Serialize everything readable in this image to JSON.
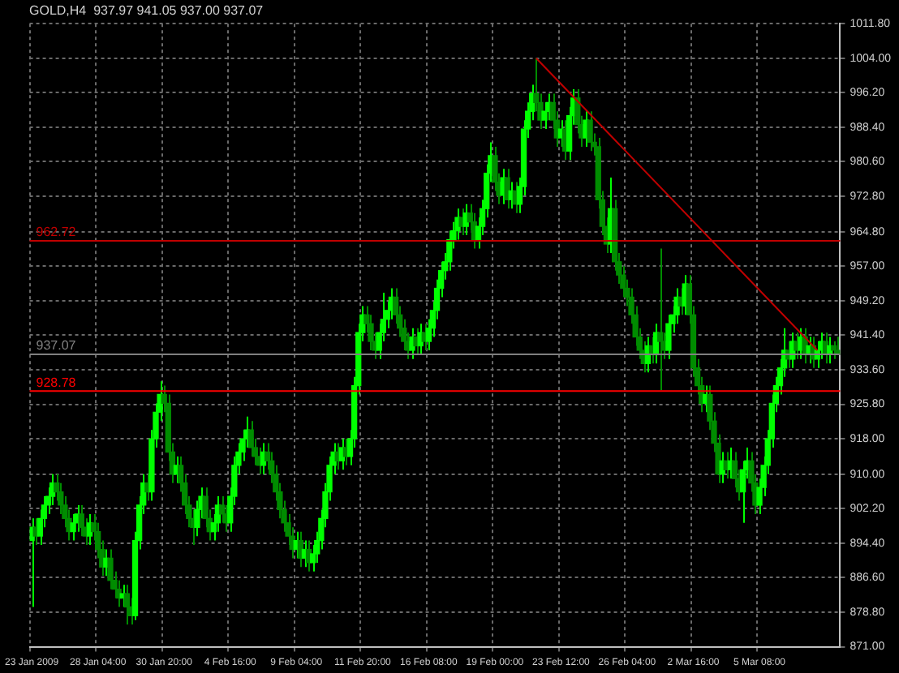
{
  "chart_data": {
    "type": "candlestick",
    "title": "GOLD,H4  937.97 941.05 937.00 937.07",
    "colors": [
      "#00ff00",
      "#008c00",
      "#00ff00",
      "#00ff00",
      "#00ff00",
      "#00ff00",
      "#008c00",
      "#008c00",
      "#008c00",
      "#008c00",
      "#00ff00",
      "#00ff00",
      "#008c00",
      "#008c00",
      "#00ff00",
      "#008c00",
      "#008c00",
      "#008c00",
      "#00ff00",
      "#008c00",
      "#008c00",
      "#008c00",
      "#00ff00",
      "#008c00",
      "#008c00",
      "#00ff00",
      "#00ff00",
      "#00ff00",
      "#008c00",
      "#00ff00",
      "#00ff00",
      "#00ff00",
      "#008c00",
      "#008c00",
      "#008c00",
      "#00ff00",
      "#008c00",
      "#008c00",
      "#008c00",
      "#008c00",
      "#00ff00",
      "#00ff00",
      "#008c00",
      "#008c00",
      "#00ff00",
      "#00ff00",
      "#008c00",
      "#008c00",
      "#00ff00",
      "#00ff00",
      "#00ff00",
      "#00ff00",
      "#00ff00",
      "#008c00",
      "#008c00",
      "#008c00",
      "#00ff00",
      "#008c00",
      "#008c00",
      "#008c00",
      "#008c00",
      "#008c00",
      "#008c00",
      "#008c00",
      "#00ff00",
      "#008c00",
      "#00ff00",
      "#008c00",
      "#00ff00",
      "#00ff00",
      "#00ff00",
      "#00ff00",
      "#00ff00",
      "#00ff00",
      "#008c00",
      "#00ff00",
      "#008c00",
      "#00ff00",
      "#00ff00",
      "#00ff00",
      "#00ff00",
      "#008c00",
      "#008c00",
      "#008c00",
      "#00ff00",
      "#00ff00",
      "#00ff00",
      "#00ff00",
      "#008c00",
      "#008c00",
      "#008c00",
      "#008c00",
      "#00ff00",
      "#008c00",
      "#00ff00",
      "#008c00",
      "#00ff00",
      "#00ff00",
      "#00ff00",
      "#00ff00",
      "#00ff00",
      "#00ff00",
      "#00ff00",
      "#00ff00",
      "#008c00",
      "#00ff00",
      "#008c00",
      "#008c00",
      "#00ff00",
      "#00ff00",
      "#00ff00",
      "#00ff00",
      "#008c00",
      "#008c00",
      "#00ff00",
      "#008c00",
      "#00ff00",
      "#008c00",
      "#00ff00",
      "#00ff00",
      "#00ff00",
      "#00ff00",
      "#008c00",
      "#008c00",
      "#00ff00",
      "#00ff00",
      "#008c00",
      "#008c00",
      "#00ff00",
      "#008c00",
      "#00ff00",
      "#00ff00",
      "#008c00",
      "#008c00",
      "#00ff00",
      "#008c00",
      "#008c00",
      "#008c00",
      "#008c00",
      "#008c00",
      "#00ff00",
      "#008c00",
      "#008c00",
      "#008c00",
      "#008c00",
      "#008c00",
      "#008c00",
      "#008c00",
      "#008c00",
      "#00ff00",
      "#008c00",
      "#00ff00",
      "#008c00",
      "#008c00",
      "#00ff00",
      "#00ff00",
      "#00ff00",
      "#008c00",
      "#00ff00",
      "#008c00",
      "#008c00",
      "#008c00",
      "#008c00",
      "#00ff00",
      "#008c00",
      "#008c00",
      "#008c00",
      "#00ff00",
      "#008c00",
      "#00ff00",
      "#008c00",
      "#008c00",
      "#00ff00",
      "#00ff00",
      "#008c00",
      "#008c00",
      "#00ff00",
      "#00ff00",
      "#00ff00",
      "#00ff00",
      "#00ff00",
      "#00ff00",
      "#00ff00",
      "#008c00",
      "#00ff00",
      "#008c00",
      "#00ff00",
      "#008c00",
      "#00ff00",
      "#008c00",
      "#00ff00",
      "#00ff00",
      "#008c00",
      "#00ff00",
      "#008c00",
      "#008c00"
    ],
    "categories": [
      "23 Jan 2009",
      null,
      null,
      null,
      null,
      null,
      null,
      null,
      null,
      null,
      null,
      null,
      null,
      null,
      null,
      null,
      "28 Jan 04:00",
      null,
      null,
      null,
      null,
      null,
      null,
      null,
      null,
      null,
      null,
      null,
      null,
      null,
      null,
      null,
      "30 Jan 20:00",
      null,
      null,
      null,
      null,
      null,
      null,
      null,
      null,
      null,
      null,
      null,
      null,
      null,
      null,
      null,
      "4 Feb 16:00",
      null,
      null,
      null,
      null,
      null,
      null,
      null,
      null,
      null,
      null,
      null,
      null,
      null,
      null,
      null,
      "9 Feb 04:00",
      null,
      null,
      null,
      null,
      null,
      null,
      null,
      null,
      null,
      null,
      null,
      null,
      null,
      null,
      null,
      "11 Feb 20:00",
      null,
      null,
      null,
      null,
      null,
      null,
      null,
      null,
      null,
      null,
      null,
      null,
      null,
      null,
      null,
      "16 Feb 08:00",
      null,
      null,
      null,
      null,
      null,
      null,
      null,
      null,
      null,
      null,
      null,
      null,
      null,
      null,
      null,
      "19 Feb 00:00",
      null,
      null,
      null,
      null,
      null,
      null,
      null,
      null,
      null,
      null,
      null,
      null,
      null,
      null,
      null,
      "23 Feb 12:00",
      null,
      null,
      null,
      null,
      null,
      null,
      null,
      null,
      null,
      null,
      null,
      null,
      null,
      null,
      null,
      "26 Feb 04:00",
      null,
      null,
      null,
      null,
      null,
      null,
      null,
      null,
      null,
      null,
      null,
      null,
      null,
      null,
      null,
      "2 Mar 16:00",
      null,
      null,
      null,
      null,
      null,
      null,
      null,
      null,
      null,
      null,
      null,
      null,
      null,
      null,
      null,
      "5 Mar 08:00",
      null,
      null,
      null,
      null,
      null,
      null,
      null,
      null,
      null,
      null,
      null,
      null,
      null,
      null,
      null,
      null,
      null,
      null,
      null
    ],
    "ohlc": [
      [
        895,
        900,
        880,
        898
      ],
      [
        898,
        900,
        894,
        896
      ],
      [
        896,
        902,
        894,
        900
      ],
      [
        900,
        905,
        898,
        903
      ],
      [
        903,
        907,
        901,
        905
      ],
      [
        905,
        910,
        903,
        908
      ],
      [
        908,
        910,
        904,
        906
      ],
      [
        906,
        908,
        901,
        903
      ],
      [
        903,
        905,
        898,
        900
      ],
      [
        900,
        902,
        895,
        897
      ],
      [
        897,
        901,
        895,
        899
      ],
      [
        899,
        903,
        897,
        901
      ],
      [
        901,
        903,
        896,
        898
      ],
      [
        898,
        900,
        894,
        896
      ],
      [
        896,
        901,
        894,
        899
      ],
      [
        899,
        901,
        895,
        897
      ],
      [
        897,
        899,
        891,
        893
      ],
      [
        893,
        895,
        887,
        889
      ],
      [
        889,
        893,
        887,
        891
      ],
      [
        891,
        893,
        884,
        886
      ],
      [
        886,
        888,
        882,
        884
      ],
      [
        884,
        886,
        880,
        882
      ],
      [
        882,
        885,
        880,
        883
      ],
      [
        883,
        885,
        876,
        880
      ],
      [
        880,
        882,
        876,
        878
      ],
      [
        878,
        897,
        877,
        895
      ],
      [
        895,
        905,
        893,
        903
      ],
      [
        903,
        910,
        901,
        908
      ],
      [
        908,
        910,
        904,
        906
      ],
      [
        906,
        920,
        904,
        918
      ],
      [
        918,
        926,
        916,
        924
      ],
      [
        924,
        931,
        922,
        928
      ],
      [
        928,
        930,
        924,
        926
      ],
      [
        926,
        928,
        913,
        915
      ],
      [
        915,
        917,
        908,
        910
      ],
      [
        910,
        914,
        908,
        912
      ],
      [
        912,
        914,
        906,
        908
      ],
      [
        908,
        910,
        901,
        903
      ],
      [
        903,
        905,
        898,
        900
      ],
      [
        900,
        902,
        894,
        898
      ],
      [
        898,
        904,
        896,
        902
      ],
      [
        902,
        907,
        900,
        905
      ],
      [
        905,
        907,
        898,
        900
      ],
      [
        900,
        902,
        895,
        897
      ],
      [
        897,
        901,
        895,
        899
      ],
      [
        899,
        905,
        897,
        903
      ],
      [
        903,
        905,
        899,
        901
      ],
      [
        901,
        903,
        897,
        899
      ],
      [
        899,
        907,
        897,
        905
      ],
      [
        905,
        914,
        903,
        912
      ],
      [
        912,
        917,
        910,
        915
      ],
      [
        915,
        920,
        913,
        918
      ],
      [
        918,
        923,
        916,
        920
      ],
      [
        920,
        922,
        914,
        916
      ],
      [
        916,
        918,
        912,
        914
      ],
      [
        914,
        916,
        910,
        912
      ],
      [
        912,
        917,
        910,
        915
      ],
      [
        915,
        917,
        911,
        913
      ],
      [
        913,
        915,
        908,
        910
      ],
      [
        910,
        912,
        904,
        906
      ],
      [
        906,
        908,
        900,
        902
      ],
      [
        902,
        904,
        897,
        899
      ],
      [
        899,
        901,
        894,
        896
      ],
      [
        896,
        898,
        891,
        893
      ],
      [
        893,
        897,
        891,
        895
      ],
      [
        895,
        897,
        889,
        891
      ],
      [
        891,
        895,
        889,
        893
      ],
      [
        893,
        895,
        888,
        890
      ],
      [
        890,
        894,
        888,
        892
      ],
      [
        892,
        897,
        890,
        895
      ],
      [
        895,
        902,
        893,
        900
      ],
      [
        900,
        908,
        898,
        906
      ],
      [
        906,
        914,
        904,
        912
      ],
      [
        912,
        917,
        910,
        915
      ],
      [
        915,
        917,
        911,
        913
      ],
      [
        913,
        918,
        911,
        916
      ],
      [
        916,
        918,
        912,
        914
      ],
      [
        914,
        920,
        912,
        918
      ],
      [
        918,
        932,
        916,
        930
      ],
      [
        930,
        944,
        928,
        942
      ],
      [
        942,
        948,
        940,
        946
      ],
      [
        946,
        948,
        942,
        944
      ],
      [
        944,
        946,
        938,
        940
      ],
      [
        940,
        942,
        936,
        938
      ],
      [
        938,
        944,
        936,
        942
      ],
      [
        942,
        951,
        940,
        945
      ],
      [
        945,
        949,
        943,
        947
      ],
      [
        947,
        952,
        945,
        950
      ],
      [
        950,
        952,
        944,
        946
      ],
      [
        946,
        948,
        941,
        943
      ],
      [
        943,
        945,
        938,
        940
      ],
      [
        940,
        942,
        936,
        938
      ],
      [
        938,
        943,
        936,
        941
      ],
      [
        941,
        943,
        937,
        939
      ],
      [
        939,
        944,
        937,
        942
      ],
      [
        942,
        944,
        938,
        940
      ],
      [
        940,
        945,
        938,
        943
      ],
      [
        943,
        949,
        941,
        947
      ],
      [
        947,
        954,
        945,
        952
      ],
      [
        952,
        958,
        950,
        956
      ],
      [
        956,
        960,
        954,
        958
      ],
      [
        958,
        965,
        956,
        963
      ],
      [
        963,
        967,
        961,
        965
      ],
      [
        965,
        970,
        963,
        968
      ],
      [
        968,
        970,
        964,
        966
      ],
      [
        966,
        971,
        964,
        969
      ],
      [
        969,
        971,
        965,
        967
      ],
      [
        967,
        969,
        961,
        963
      ],
      [
        963,
        968,
        961,
        966
      ],
      [
        966,
        972,
        964,
        970
      ],
      [
        970,
        980,
        968,
        978
      ],
      [
        978,
        985,
        976,
        982
      ],
      [
        982,
        984,
        974,
        976
      ],
      [
        976,
        978,
        971,
        973
      ],
      [
        973,
        979,
        971,
        977
      ],
      [
        977,
        979,
        970,
        972
      ],
      [
        972,
        976,
        970,
        974
      ],
      [
        974,
        976,
        969,
        971
      ],
      [
        971,
        977,
        969,
        975
      ],
      [
        975,
        990,
        973,
        988
      ],
      [
        988,
        994,
        986,
        992
      ],
      [
        992,
        998,
        990,
        996
      ],
      [
        996,
        1004,
        992,
        994
      ],
      [
        994,
        996,
        988,
        990
      ],
      [
        990,
        994,
        988,
        992
      ],
      [
        992,
        996,
        990,
        994
      ],
      [
        994,
        996,
        988,
        990
      ],
      [
        990,
        992,
        984,
        986
      ],
      [
        986,
        990,
        984,
        988
      ],
      [
        988,
        990,
        981,
        983
      ],
      [
        983,
        993,
        981,
        991
      ],
      [
        991,
        997,
        989,
        995
      ],
      [
        995,
        997,
        987,
        989
      ],
      [
        989,
        991,
        984,
        986
      ],
      [
        986,
        992,
        984,
        990
      ],
      [
        990,
        992,
        983,
        985
      ],
      [
        985,
        987,
        982,
        984
      ],
      [
        984,
        986,
        970,
        972
      ],
      [
        972,
        974,
        964,
        966
      ],
      [
        966,
        968,
        960,
        962
      ],
      [
        962,
        977,
        960,
        970
      ],
      [
        970,
        972,
        956,
        958
      ],
      [
        958,
        960,
        953,
        955
      ],
      [
        955,
        957,
        950,
        952
      ],
      [
        952,
        954,
        948,
        950
      ],
      [
        950,
        952,
        944,
        946
      ],
      [
        946,
        948,
        939,
        941
      ],
      [
        941,
        943,
        936,
        938
      ],
      [
        938,
        940,
        933,
        935
      ],
      [
        935,
        941,
        933,
        939
      ],
      [
        939,
        941,
        935,
        937
      ],
      [
        937,
        944,
        935,
        942
      ],
      [
        942,
        961,
        929,
        940
      ],
      [
        940,
        942,
        936,
        938
      ],
      [
        938,
        946,
        936,
        944
      ],
      [
        944,
        948,
        942,
        946
      ],
      [
        946,
        952,
        944,
        950
      ],
      [
        950,
        952,
        946,
        948
      ],
      [
        948,
        955,
        946,
        953
      ],
      [
        953,
        955,
        944,
        946
      ],
      [
        946,
        948,
        932,
        934
      ],
      [
        934,
        936,
        928,
        930
      ],
      [
        930,
        932,
        924,
        926
      ],
      [
        926,
        930,
        924,
        928
      ],
      [
        928,
        930,
        920,
        922
      ],
      [
        922,
        924,
        915,
        917
      ],
      [
        917,
        919,
        908,
        910
      ],
      [
        910,
        915,
        908,
        913
      ],
      [
        913,
        915,
        909,
        911
      ],
      [
        911,
        916,
        909,
        913
      ],
      [
        913,
        915,
        907,
        909
      ],
      [
        909,
        911,
        904,
        906
      ],
      [
        906,
        913,
        899,
        911
      ],
      [
        911,
        916,
        909,
        913
      ],
      [
        913,
        915,
        906,
        908
      ],
      [
        908,
        910,
        901,
        903
      ],
      [
        903,
        909,
        901,
        907
      ],
      [
        907,
        914,
        905,
        912
      ],
      [
        912,
        920,
        910,
        918
      ],
      [
        918,
        928,
        916,
        926
      ],
      [
        926,
        932,
        924,
        930
      ],
      [
        930,
        936,
        928,
        934
      ],
      [
        934,
        943,
        932,
        938
      ],
      [
        938,
        940,
        934,
        936
      ],
      [
        936,
        942,
        934,
        940
      ],
      [
        940,
        942,
        936,
        938
      ],
      [
        938,
        943,
        936,
        941
      ],
      [
        941,
        943,
        935,
        937
      ],
      [
        937,
        941,
        935,
        939
      ],
      [
        939,
        941,
        934,
        936
      ],
      [
        936,
        940,
        934,
        938
      ],
      [
        938,
        942,
        936,
        940
      ],
      [
        940,
        942,
        935,
        937
      ],
      [
        937,
        941,
        935,
        939
      ],
      [
        939,
        940,
        936,
        938
      ],
      [
        937.97,
        941.05,
        937.0,
        937.07
      ]
    ],
    "series": [
      {
        "type": "line",
        "color": "#c00000",
        "values": [
          null,
          null,
          null,
          null,
          null,
          null,
          null,
          null,
          null,
          null,
          null,
          null,
          null,
          null,
          null,
          null,
          null,
          null,
          null,
          null,
          null,
          null,
          null,
          null,
          null,
          null,
          null,
          null,
          null,
          null,
          null,
          null,
          null,
          null,
          null,
          null,
          null,
          null,
          null,
          null,
          null,
          null,
          null,
          null,
          null,
          null,
          null,
          null,
          null,
          null,
          null,
          null,
          null,
          null,
          null,
          null,
          null,
          null,
          null,
          null,
          null,
          null,
          null,
          null,
          null,
          null,
          null,
          null,
          null,
          null,
          null,
          null,
          null,
          null,
          null,
          null,
          null,
          null,
          null,
          null,
          null,
          null,
          null,
          null,
          null,
          null,
          null,
          null,
          null,
          null,
          null,
          null,
          null,
          null,
          null,
          null,
          null,
          null,
          null,
          null,
          null,
          null,
          null,
          null,
          null,
          null,
          null,
          null,
          null,
          null,
          null,
          null,
          null,
          null,
          null,
          null,
          null,
          null,
          null,
          null,
          null,
          null,
          1004,
          null,
          null,
          null,
          null,
          null,
          null,
          null,
          null,
          null,
          null,
          null,
          null,
          null,
          null,
          null,
          null,
          null,
          null,
          null,
          null,
          null,
          null,
          null,
          null,
          null,
          null,
          null,
          null,
          null,
          null,
          null,
          null,
          null,
          null,
          null,
          null,
          null,
          null,
          null,
          null,
          null,
          null,
          null,
          null,
          null,
          null,
          null,
          null,
          null,
          null,
          null,
          null,
          null,
          null,
          null,
          null,
          null,
          null,
          null,
          null,
          null,
          null,
          null,
          null,
          null,
          null,
          null,
          938,
          null,
          null,
          null,
          null,
          null
        ]
      }
    ],
    "ylim": [
      871.0,
      1011.8
    ],
    "yticks": [
      {
        "value": 871.0,
        "label": "871.00"
      },
      {
        "value": 878.8,
        "label": "878.80"
      },
      {
        "value": 886.6,
        "label": "886.60"
      },
      {
        "value": 894.4,
        "label": "894.40"
      },
      {
        "value": 902.2,
        "label": "902.20"
      },
      {
        "value": 910.0,
        "label": "910.00"
      },
      {
        "value": 918.0,
        "label": "918.00"
      },
      {
        "value": 925.8,
        "label": "925.80"
      },
      {
        "value": 933.6,
        "label": "933.60"
      },
      {
        "value": 941.4,
        "label": "941.40"
      },
      {
        "value": 949.2,
        "label": "949.20"
      },
      {
        "value": 957.0,
        "label": "957.00"
      },
      {
        "value": 964.8,
        "label": "964.80"
      },
      {
        "value": 972.8,
        "label": "972.80"
      },
      {
        "value": 980.6,
        "label": "980.60"
      },
      {
        "value": 988.4,
        "label": "988.40"
      },
      {
        "value": 996.2,
        "label": "996.20"
      },
      {
        "value": 1004.0,
        "label": "1004.00"
      },
      {
        "value": 1011.8,
        "label": "1011.80"
      }
    ],
    "ref_lines": [
      {
        "axis": "y",
        "value": 962.72,
        "label": "962.72",
        "color": "#c00000"
      },
      {
        "axis": "y",
        "value": 928.78,
        "label": "928.78",
        "color": "#ff0000"
      },
      {
        "axis": "y",
        "value": 937.07,
        "label": "937.07",
        "color": "#808080"
      }
    ],
    "grid": true
  }
}
